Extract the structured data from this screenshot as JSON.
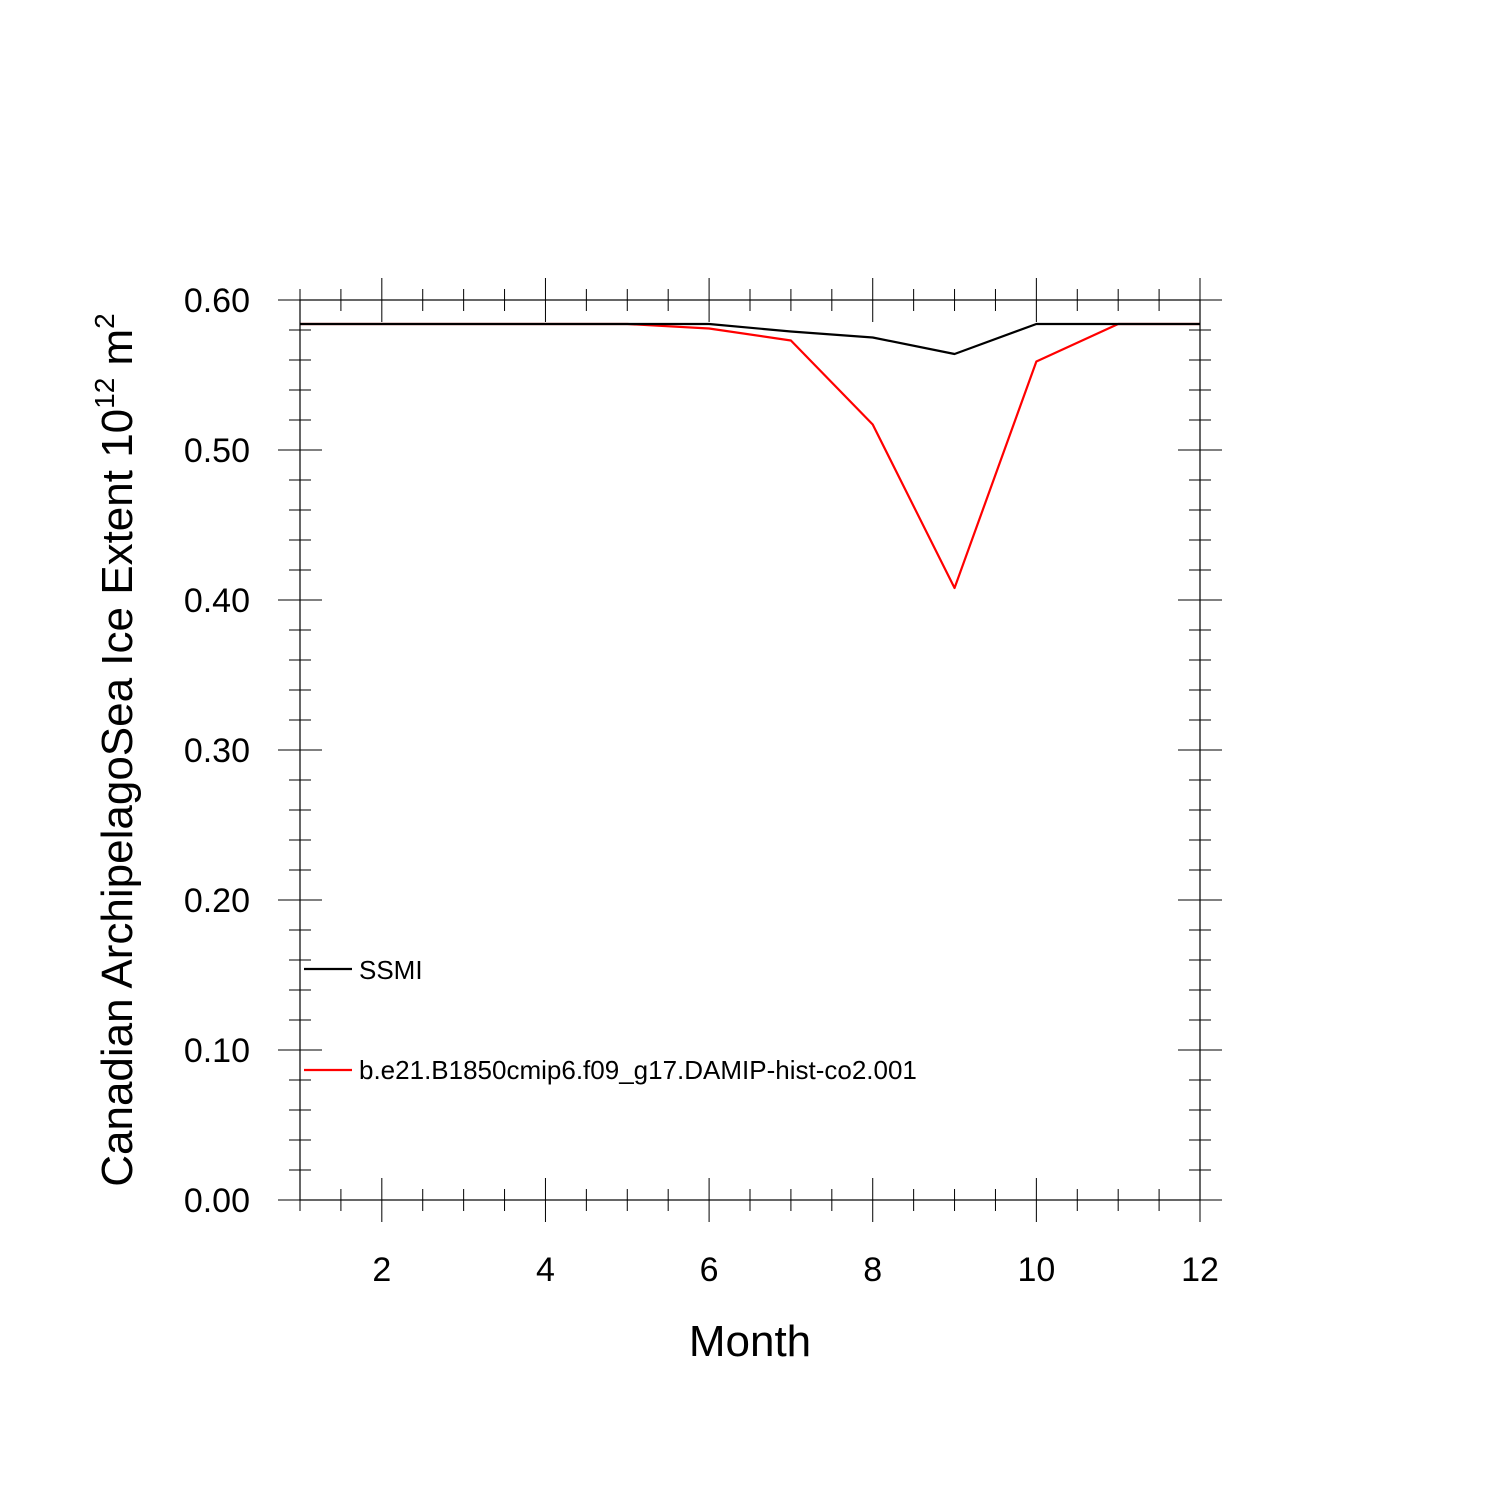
{
  "chart_data": {
    "type": "line",
    "xlabel": "Month",
    "ylabel": {
      "text": "Canadian ArchipelagoSea Ice Extent 10",
      "sup1": "12",
      "mid": " m",
      "sup2": "2"
    },
    "xlim": [
      1,
      12
    ],
    "ylim": [
      0,
      0.6
    ],
    "x_ticks": [
      2,
      4,
      6,
      8,
      10,
      12
    ],
    "y_ticks": [
      0.0,
      0.1,
      0.2,
      0.3,
      0.4,
      0.5,
      0.6
    ],
    "y_tick_labels": [
      "0.00",
      "0.10",
      "0.20",
      "0.30",
      "0.40",
      "0.50",
      "0.60"
    ],
    "x_tick_labels": [
      "2",
      "4",
      "6",
      "8",
      "10",
      "12"
    ],
    "grid": false,
    "legend_position": "lower-left",
    "x": [
      1,
      2,
      3,
      4,
      5,
      6,
      7,
      8,
      9,
      10,
      11,
      12
    ],
    "series": [
      {
        "name": "SSMI",
        "color": "#000000",
        "values": [
          0.584,
          0.584,
          0.584,
          0.584,
          0.584,
          0.584,
          0.579,
          0.575,
          0.564,
          0.584,
          0.584,
          0.584
        ]
      },
      {
        "name": "b.e21.B1850cmip6.f09_g17.DAMIP-hist-co2.001",
        "color": "#ff0000",
        "values": [
          0.584,
          0.584,
          0.584,
          0.584,
          0.584,
          0.581,
          0.573,
          0.517,
          0.408,
          0.559,
          0.584,
          0.584
        ]
      }
    ]
  }
}
